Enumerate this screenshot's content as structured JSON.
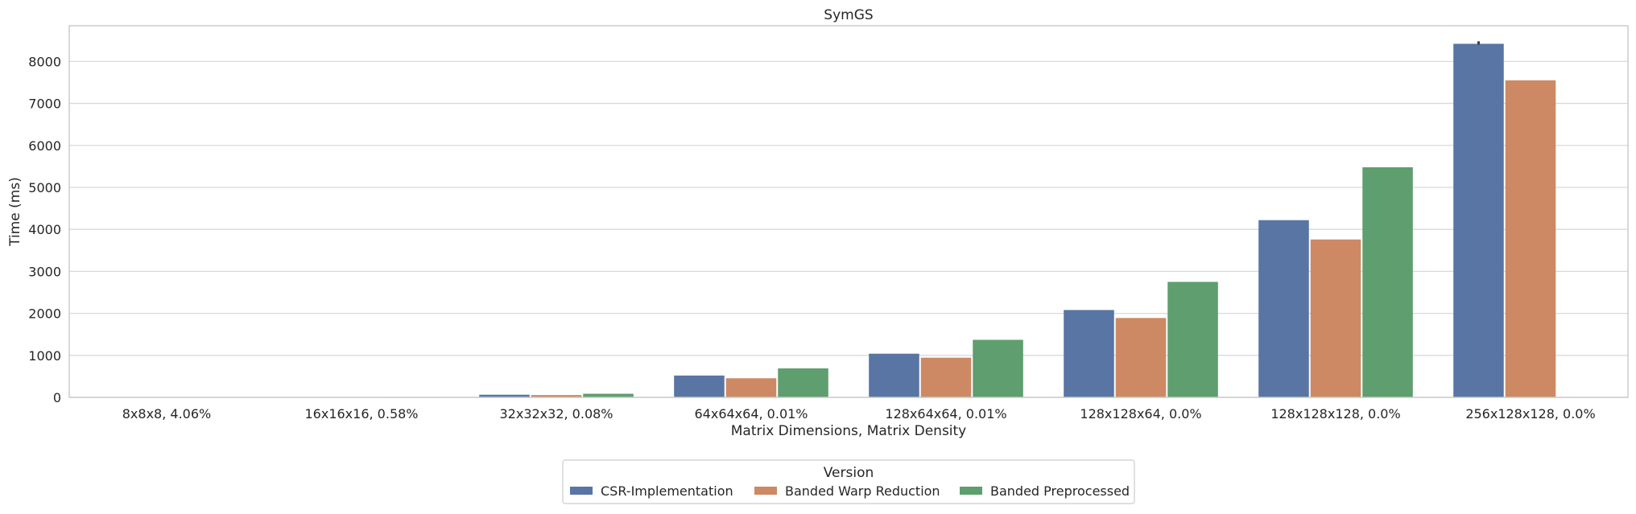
{
  "chart_data": {
    "type": "bar",
    "title": "SymGS",
    "xlabel": "Matrix Dimensions, Matrix Density",
    "ylabel": "Time (ms)",
    "ylim": [
      0,
      8850
    ],
    "yticks": [
      0,
      1000,
      2000,
      3000,
      4000,
      5000,
      6000,
      7000,
      8000
    ],
    "grid": true,
    "legend_title": "Version",
    "legend_position": "bottom-center",
    "categories": [
      "8x8x8, 4.06%",
      "16x16x16, 0.58%",
      "32x32x32, 0.08%",
      "64x64x64, 0.01%",
      "128x64x64, 0.01%",
      "128x128x64, 0.0%",
      "128x128x128, 0.0%",
      "256x128x128, 0.0%"
    ],
    "series": [
      {
        "name": "CSR-Implementation",
        "color": "#5875a4",
        "values": [
          2,
          8,
          63,
          520,
          1040,
          2080,
          4220,
          8420
        ]
      },
      {
        "name": "Banded Warp Reduction",
        "color": "#cc8963",
        "values": [
          2,
          7,
          55,
          455,
          945,
          1890,
          3760,
          7550
        ]
      },
      {
        "name": "Banded Preprocessed",
        "color": "#5f9e6e",
        "values": [
          3,
          11,
          86,
          690,
          1370,
          2750,
          5480,
          null
        ]
      }
    ],
    "error_bars": [
      {
        "series": "CSR-Implementation",
        "category": "256x128x128, 0.0%",
        "low": 8400,
        "high": 8480
      }
    ]
  }
}
